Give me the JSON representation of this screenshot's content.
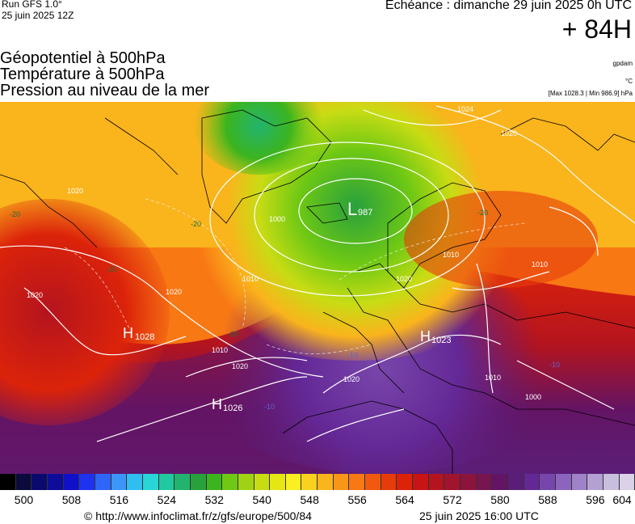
{
  "header": {
    "run": "Run GFS 1.0°",
    "run_time": "25 juin 2025 12Z",
    "echeance": "Échéance : dimanche 29 juin 2025 0h UTC",
    "lead": "+ 84H"
  },
  "titles": {
    "line1": "Géopotentiel à 500hPa",
    "line2": "Température à 500hPa",
    "line3": "Pression au niveau de la mer"
  },
  "units": {
    "geopotential": "gpdam",
    "temperature": "°C",
    "pressure_range": "[Max 1028.3 | Min 986.9] hPa"
  },
  "pressure_centers": [
    {
      "type": "L",
      "value": "987"
    },
    {
      "type": "H",
      "value": "1028"
    },
    {
      "type": "H",
      "value": "1026"
    },
    {
      "type": "H",
      "value": "1023"
    }
  ],
  "isobar_labels": [
    "1024",
    "1020",
    "1020",
    "1010",
    "1000",
    "1010",
    "1020",
    "1020",
    "1010",
    "1020",
    "1020",
    "1010",
    "1010",
    "1020",
    "1000"
  ],
  "temp_labels": [
    "-20",
    "-20",
    "-20",
    "-20",
    "-10",
    "-10",
    "-10",
    "-20"
  ],
  "legend": {
    "colors": [
      "#000000",
      "#0a0a3c",
      "#0a0a6e",
      "#0d0d9a",
      "#1010c8",
      "#1e32f0",
      "#2e66f8",
      "#3c96f8",
      "#30bef0",
      "#28d6d8",
      "#22c8a0",
      "#22b46e",
      "#28a03c",
      "#3cb41e",
      "#6ec814",
      "#a0d214",
      "#c8dc14",
      "#e6e614",
      "#f8f020",
      "#fad21e",
      "#fab41c",
      "#f89618",
      "#f87814",
      "#f05a10",
      "#e63c0c",
      "#dc230a",
      "#c81414",
      "#b4141e",
      "#a0142d",
      "#8c143c",
      "#781450",
      "#641464",
      "#5a1e78",
      "#642896",
      "#7846aa",
      "#8c64be",
      "#a082c8",
      "#b4a0d2",
      "#c8bede",
      "#dcd2e8"
    ],
    "ticks": [
      "500",
      "508",
      "516",
      "524",
      "532",
      "540",
      "548",
      "556",
      "564",
      "572",
      "580",
      "588",
      "596",
      "604"
    ]
  },
  "footer": {
    "url": "© http://www.infoclimat.fr/z/gfs/europe/500/84",
    "generated": "25 juin 2025 16:00 UTC"
  }
}
